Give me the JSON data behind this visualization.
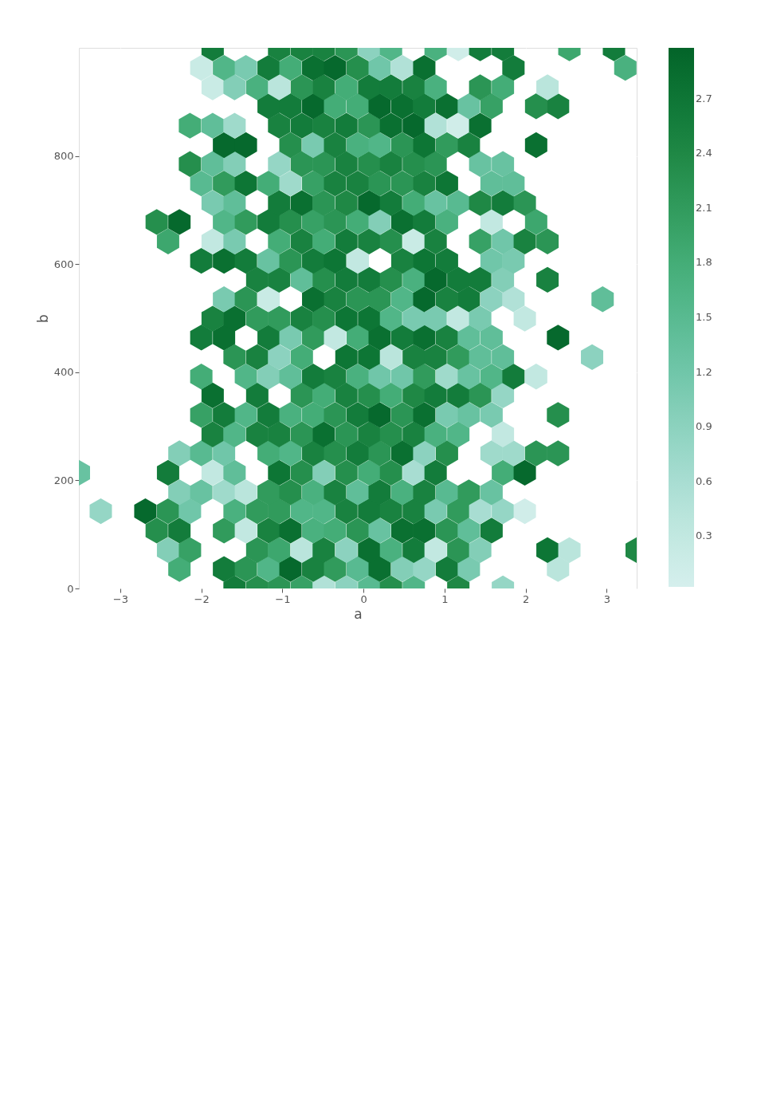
{
  "chart_data": {
    "type": "scatter",
    "xlabel": "a",
    "ylabel": "b",
    "xlim": [
      -3.51,
      3.37
    ],
    "ylim": [
      0,
      1000
    ],
    "xticks": [
      {
        "value": -3,
        "label": "−3"
      },
      {
        "value": -2,
        "label": "−2"
      },
      {
        "value": -1,
        "label": "−1"
      },
      0,
      1,
      2,
      3
    ],
    "yticks": [
      0,
      200,
      400,
      600,
      800
    ],
    "clim": [
      0.02,
      2.98
    ],
    "cticks": [
      0.3,
      0.6,
      0.9,
      1.2,
      1.5,
      1.8,
      2.1,
      2.4,
      2.7
    ],
    "grid": true,
    "series": [
      {
        "x": [
          -1.59,
          -1.31,
          -1.04,
          -0.76,
          -0.49,
          -0.21,
          0.07,
          0.34,
          0.62,
          1.17,
          1.72,
          -2.27,
          -1.72,
          -1.45,
          -1.17,
          -0.9,
          -0.62,
          -0.35,
          -0.07,
          0.2,
          0.48,
          0.75,
          1.03,
          1.3,
          2.4,
          -2.41,
          -2.14,
          -1.31,
          -1.04,
          -0.76,
          -0.49,
          -0.21,
          0.07,
          0.34,
          0.62,
          0.89,
          1.17,
          1.44,
          2.27,
          2.54,
          3.37,
          -2.55,
          -2.27,
          -1.72,
          -1.45,
          -1.17,
          -0.9,
          -0.62,
          -0.35,
          -0.07,
          0.2,
          0.48,
          0.75,
          1.03,
          1.3,
          1.58,
          -3.24,
          -2.69,
          -2.41,
          -2.14,
          -1.59,
          -1.31,
          -1.04,
          -0.76,
          -0.49,
          -0.21,
          0.07,
          0.34,
          0.62,
          0.89,
          1.17,
          1.44,
          1.72,
          1.99,
          -2.27,
          -2.0,
          -1.72,
          -1.45,
          -1.17,
          -0.9,
          -0.62,
          -0.35,
          -0.07,
          0.2,
          0.48,
          0.75,
          1.03,
          1.3,
          1.58,
          -3.51,
          -2.41,
          -1.86,
          -1.59,
          -1.04,
          -0.76,
          -0.49,
          -0.21,
          0.07,
          0.34,
          0.62,
          0.89,
          1.72,
          1.99,
          -2.27,
          -2.0,
          -1.72,
          -1.17,
          -0.9,
          -0.62,
          -0.35,
          -0.07,
          0.2,
          0.48,
          0.75,
          1.03,
          1.58,
          1.85,
          2.13,
          2.4,
          -1.86,
          -1.59,
          -1.31,
          -1.04,
          -0.76,
          -0.49,
          -0.21,
          0.07,
          0.34,
          0.62,
          0.89,
          1.17,
          1.72,
          -2.0,
          -1.72,
          -1.45,
          -1.17,
          -0.9,
          -0.62,
          -0.35,
          -0.07,
          0.2,
          0.48,
          0.75,
          1.03,
          1.3,
          1.58,
          2.4,
          -1.86,
          -1.31,
          -0.76,
          -0.49,
          -0.21,
          0.07,
          0.34,
          0.62,
          0.89,
          1.17,
          1.44,
          1.72,
          -2.0,
          -1.45,
          -1.17,
          -0.9,
          -0.62,
          -0.35,
          -0.07,
          0.2,
          0.48,
          0.75,
          1.03,
          1.3,
          1.58,
          1.85,
          2.13,
          -1.59,
          -1.31,
          -1.04,
          -0.76,
          -0.21,
          0.07,
          0.34,
          0.62,
          0.89,
          1.17,
          1.44,
          1.72,
          2.82,
          -2.0,
          -1.72,
          -1.17,
          -0.9,
          -0.62,
          -0.35,
          -0.07,
          0.2,
          0.48,
          0.75,
          1.03,
          1.3,
          1.58,
          2.4,
          -1.86,
          -1.59,
          -1.31,
          -1.04,
          -0.76,
          -0.49,
          -0.21,
          0.07,
          0.34,
          0.62,
          0.89,
          1.17,
          1.44,
          1.99,
          -1.72,
          -1.45,
          -1.17,
          -0.62,
          -0.35,
          -0.07,
          0.2,
          0.48,
          0.75,
          1.03,
          1.3,
          1.58,
          1.85,
          2.95,
          -1.31,
          -1.04,
          -0.76,
          -0.49,
          -0.21,
          0.07,
          0.34,
          0.62,
          0.89,
          1.17,
          1.44,
          1.72,
          2.27,
          -2.0,
          -1.72,
          -1.45,
          -1.17,
          -0.9,
          -0.62,
          -0.35,
          -0.07,
          0.48,
          0.75,
          1.03,
          1.58,
          1.85,
          -2.41,
          -1.86,
          -1.59,
          -1.04,
          -0.76,
          -0.49,
          -0.21,
          0.07,
          0.34,
          0.62,
          0.89,
          1.44,
          1.72,
          1.99,
          2.27,
          -2.55,
          -2.27,
          -1.72,
          -1.45,
          -1.17,
          -0.9,
          -0.62,
          -0.35,
          -0.07,
          0.2,
          0.48,
          0.75,
          1.03,
          1.58,
          2.13,
          -1.86,
          -1.59,
          -1.04,
          -0.76,
          -0.49,
          -0.21,
          0.07,
          0.34,
          0.62,
          0.89,
          1.17,
          1.44,
          1.72,
          1.99,
          -2.0,
          -1.72,
          -1.45,
          -1.17,
          -0.9,
          -0.62,
          -0.35,
          -0.07,
          0.2,
          0.48,
          0.75,
          1.03,
          1.58,
          1.85,
          -2.14,
          -1.86,
          -1.59,
          -1.04,
          -0.76,
          -0.49,
          -0.21,
          0.07,
          0.34,
          0.62,
          0.89,
          1.44,
          1.72,
          -1.72,
          -1.45,
          -0.9,
          -0.62,
          -0.35,
          -0.07,
          0.2,
          0.48,
          0.75,
          1.03,
          1.3,
          2.13,
          -2.14,
          -1.86,
          -1.59,
          -1.04,
          -0.76,
          -0.49,
          -0.21,
          0.07,
          0.34,
          0.62,
          0.89,
          1.17,
          1.44,
          -1.17,
          -0.9,
          -0.62,
          -0.35,
          -0.07,
          0.2,
          0.48,
          0.75,
          1.03,
          1.3,
          1.58,
          2.13,
          2.4,
          -1.86,
          -1.59,
          -1.31,
          -1.04,
          -0.76,
          -0.49,
          -0.21,
          0.07,
          0.34,
          0.62,
          0.89,
          1.44,
          1.72,
          2.27,
          -2.0,
          -1.72,
          -1.45,
          -1.17,
          -0.9,
          -0.62,
          -0.35,
          -0.07,
          0.2,
          0.48,
          0.75,
          1.85,
          3.23,
          -1.86,
          -1.04,
          -0.76,
          -0.49,
          -0.21,
          0.07,
          0.34,
          0.89,
          1.17,
          1.44,
          1.72,
          2.54,
          3.09
        ],
        "values": [
          0,
          0,
          0,
          0,
          0,
          0,
          0,
          0,
          0,
          0,
          0,
          36,
          36,
          36,
          36,
          36,
          36,
          36,
          36,
          36,
          36,
          36,
          36,
          36,
          36,
          71,
          71,
          71,
          71,
          71,
          71,
          71,
          71,
          71,
          71,
          71,
          71,
          71,
          71,
          71,
          71,
          107,
          107,
          107,
          107,
          107,
          107,
          107,
          107,
          107,
          107,
          107,
          107,
          107,
          107,
          107,
          143,
          143,
          143,
          143,
          143,
          143,
          143,
          143,
          143,
          143,
          143,
          143,
          143,
          143,
          143,
          143,
          143,
          143,
          178,
          178,
          178,
          178,
          178,
          178,
          178,
          178,
          178,
          178,
          178,
          178,
          178,
          178,
          178,
          214,
          214,
          214,
          214,
          214,
          214,
          214,
          214,
          214,
          214,
          214,
          214,
          214,
          214,
          250,
          250,
          250,
          250,
          250,
          250,
          250,
          250,
          250,
          250,
          250,
          250,
          250,
          250,
          250,
          250,
          285,
          285,
          285,
          285,
          285,
          285,
          285,
          285,
          285,
          285,
          285,
          285,
          285,
          321,
          321,
          321,
          321,
          321,
          321,
          321,
          321,
          321,
          321,
          321,
          321,
          321,
          321,
          321,
          357,
          357,
          357,
          357,
          357,
          357,
          357,
          357,
          357,
          357,
          357,
          357,
          392,
          392,
          392,
          392,
          392,
          392,
          392,
          392,
          392,
          392,
          392,
          392,
          392,
          392,
          392,
          428,
          428,
          428,
          428,
          428,
          428,
          428,
          428,
          428,
          428,
          428,
          428,
          428,
          464,
          464,
          464,
          464,
          464,
          464,
          464,
          464,
          464,
          464,
          464,
          464,
          464,
          464,
          499,
          499,
          499,
          499,
          499,
          499,
          499,
          499,
          499,
          499,
          499,
          499,
          499,
          499,
          535,
          535,
          535,
          535,
          535,
          535,
          535,
          535,
          535,
          535,
          535,
          535,
          535,
          535,
          571,
          571,
          571,
          571,
          571,
          571,
          571,
          571,
          571,
          571,
          571,
          571,
          571,
          606,
          606,
          606,
          606,
          606,
          606,
          606,
          606,
          606,
          606,
          606,
          606,
          606,
          642,
          642,
          642,
          642,
          642,
          642,
          642,
          642,
          642,
          642,
          642,
          642,
          642,
          642,
          642,
          678,
          678,
          678,
          678,
          678,
          678,
          678,
          678,
          678,
          678,
          678,
          678,
          678,
          678,
          678,
          713,
          713,
          713,
          713,
          713,
          713,
          713,
          713,
          713,
          713,
          713,
          713,
          713,
          713,
          749,
          749,
          749,
          749,
          749,
          749,
          749,
          749,
          749,
          749,
          749,
          749,
          749,
          749,
          785,
          785,
          785,
          785,
          785,
          785,
          785,
          785,
          785,
          785,
          785,
          785,
          785,
          820,
          820,
          820,
          820,
          820,
          820,
          820,
          820,
          820,
          820,
          820,
          820,
          856,
          856,
          856,
          856,
          856,
          856,
          856,
          856,
          856,
          856,
          856,
          856,
          856,
          892,
          892,
          892,
          892,
          892,
          892,
          892,
          892,
          892,
          892,
          892,
          892,
          892,
          927,
          927,
          927,
          927,
          927,
          927,
          927,
          927,
          927,
          927,
          927,
          927,
          927,
          927,
          963,
          963,
          963,
          963,
          963,
          963,
          963,
          963,
          963,
          963,
          963,
          963,
          963,
          999,
          999,
          999,
          999,
          999,
          999,
          999,
          999,
          999,
          999,
          999,
          999,
          999
        ],
        "cvalues": [
          2.6,
          2.3,
          2.2,
          2.0,
          0.5,
          0.9,
          1.5,
          2.3,
          1.6,
          2.4,
          0.8,
          1.8,
          2.6,
          2.2,
          1.6,
          2.9,
          2.5,
          2.1,
          1.5,
          2.8,
          1.0,
          0.8,
          2.6,
          1.1,
          0.4,
          1.0,
          2.0,
          2.2,
          1.9,
          0.4,
          2.5,
          0.9,
          2.8,
          1.7,
          2.6,
          0.3,
          2.2,
          1.0,
          2.7,
          0.4,
          2.4,
          2.3,
          2.6,
          2.1,
          0.3,
          2.5,
          2.8,
          1.7,
          1.8,
          2.2,
          1.3,
          2.8,
          2.8,
          2.2,
          1.4,
          2.6,
          0.8,
          2.9,
          2.2,
          1.2,
          1.7,
          2.1,
          2.1,
          1.6,
          1.6,
          2.5,
          2.6,
          2.5,
          2.5,
          1.1,
          2.1,
          0.6,
          0.8,
          0.1,
          1.0,
          1.3,
          0.7,
          0.4,
          2.1,
          2.3,
          1.7,
          2.5,
          1.4,
          2.6,
          1.7,
          2.5,
          1.5,
          2.1,
          1.3,
          1.3,
          2.6,
          0.3,
          1.4,
          2.7,
          2.3,
          1.0,
          2.3,
          1.8,
          2.3,
          0.6,
          2.6,
          1.8,
          2.9,
          1.0,
          1.5,
          1.2,
          1.8,
          1.6,
          2.5,
          2.3,
          2.6,
          2.2,
          2.8,
          0.9,
          2.3,
          0.7,
          0.7,
          2.2,
          2.2,
          2.5,
          1.6,
          2.5,
          2.5,
          2.2,
          2.8,
          2.2,
          2.5,
          2.3,
          2.5,
          1.7,
          1.6,
          0.3,
          2.0,
          2.6,
          1.6,
          2.6,
          1.7,
          1.8,
          2.2,
          2.6,
          2.9,
          2.2,
          2.8,
          1.1,
          1.3,
          1.1,
          2.3,
          2.8,
          2.6,
          2.2,
          1.8,
          2.5,
          2.3,
          1.8,
          2.4,
          2.6,
          2.6,
          2.2,
          0.8,
          1.8,
          1.6,
          1.0,
          1.4,
          2.6,
          2.5,
          1.7,
          1.2,
          1.2,
          2.1,
          0.7,
          1.3,
          1.6,
          2.6,
          0.3,
          2.2,
          2.5,
          0.9,
          1.8,
          2.7,
          2.7,
          0.4,
          2.5,
          2.5,
          2.1,
          1.4,
          1.4,
          0.9,
          2.6,
          2.8,
          2.6,
          1.1,
          2.1,
          0.3,
          1.8,
          2.8,
          2.6,
          2.8,
          2.5,
          1.4,
          1.4,
          2.9,
          2.5,
          2.8,
          2.1,
          2.1,
          2.5,
          2.3,
          2.7,
          2.7,
          1.6,
          1.1,
          1.1,
          0.3,
          1.1,
          0.3,
          1.1,
          2.2,
          0.2,
          2.8,
          2.5,
          2.2,
          2.2,
          1.6,
          2.9,
          2.5,
          2.6,
          0.9,
          0.5,
          1.4,
          2.5,
          2.5,
          1.4,
          2.3,
          2.6,
          2.6,
          2.3,
          1.7,
          2.9,
          2.6,
          2.6,
          1.0,
          2.5,
          2.6,
          2.8,
          2.6,
          1.3,
          2.2,
          2.6,
          2.7,
          0.3,
          2.5,
          2.7,
          2.6,
          1.2,
          1.1,
          1.9,
          0.3,
          1.1,
          1.8,
          2.5,
          1.8,
          2.6,
          2.5,
          2.3,
          0.2,
          2.5,
          2.0,
          1.2,
          2.5,
          2.2,
          2.3,
          2.9,
          1.6,
          2.1,
          2.6,
          2.3,
          2.0,
          2.2,
          1.8,
          1.0,
          2.8,
          2.6,
          1.7,
          0.3,
          1.9,
          1.1,
          1.4,
          2.6,
          2.8,
          2.2,
          2.4,
          2.9,
          2.6,
          1.8,
          1.3,
          1.5,
          2.4,
          2.6,
          2.2,
          1.5,
          2.1,
          2.7,
          1.8,
          0.7,
          2.0,
          2.5,
          2.5,
          2.2,
          2.2,
          2.5,
          2.7,
          1.4,
          1.4,
          2.3,
          1.4,
          1.0,
          0.8,
          2.2,
          2.2,
          2.5,
          2.3,
          2.5,
          2.3,
          2.2,
          1.3,
          1.3,
          2.9,
          2.9,
          2.3,
          1.1,
          2.5,
          1.7,
          1.6,
          2.2,
          2.7,
          2.1,
          2.5,
          2.8,
          1.8,
          1.4,
          0.7,
          2.5,
          2.6,
          2.5,
          2.6,
          2.2,
          2.8,
          2.9,
          0.5,
          0.1,
          2.8,
          2.6,
          2.6,
          2.9,
          1.8,
          1.8,
          2.9,
          2.8,
          2.6,
          2.8,
          1.3,
          2.0,
          2.3,
          2.5,
          0.2,
          1.0,
          1.7,
          0.4,
          2.2,
          2.5,
          1.8,
          2.6,
          2.6,
          2.5,
          1.7,
          2.2,
          1.8,
          0.4,
          0.2,
          1.6,
          1.1,
          2.6,
          1.8,
          2.8,
          2.9,
          2.3,
          1.2,
          0.5,
          2.8,
          2.6,
          1.7,
          2.6,
          2.5,
          2.5,
          2.5,
          2.2,
          0.9,
          1.6,
          1.7,
          0.1,
          2.6,
          2.6,
          1.9,
          2.6
        ]
      }
    ]
  }
}
